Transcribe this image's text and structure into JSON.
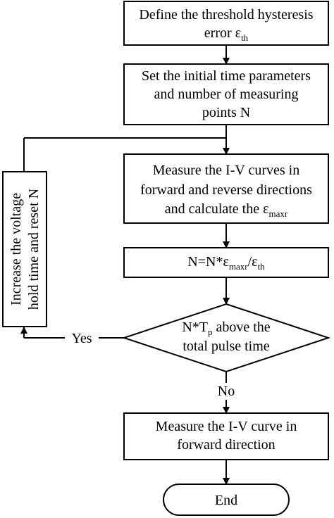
{
  "colors": {
    "stroke": "#000000",
    "background": "#ffffff",
    "text": "#000000"
  },
  "flowchart": {
    "define": {
      "line1": "Define the threshold hysteresis",
      "line2_main": "error ε",
      "line2_sub": "th"
    },
    "set_params": {
      "line1": "Set the initial time parameters",
      "line2": "and number of measuring",
      "line3": "points N"
    },
    "measure_both": {
      "line1": "Measure the I-V curves in",
      "line2": "forward and reverse directions",
      "line3_main": "and calculate the ε",
      "line3_sub": "maxr"
    },
    "update_n": {
      "part1": "N=N*ε",
      "sub1": "maxr",
      "part2": "/ε",
      "sub2": "th"
    },
    "decision": {
      "line1_main": "N*T",
      "line1_sub": "p",
      "line1_rest": " above the",
      "line2": "total pulse time"
    },
    "increase": {
      "line1": "Increase the voltage",
      "line2": "hold time and reset N"
    },
    "yes_label": "Yes",
    "no_label": "No",
    "measure_forward": {
      "line1": "Measure the I-V curve in",
      "line2": "forward  direction"
    },
    "end": {
      "label": "End"
    }
  }
}
